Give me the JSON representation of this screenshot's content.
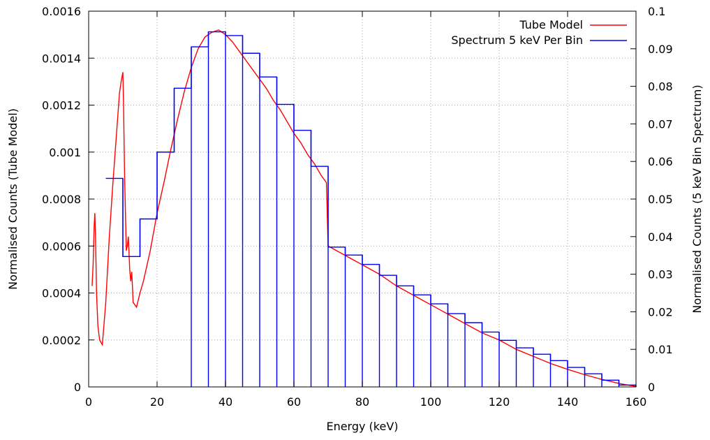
{
  "chart_data": {
    "type": "line",
    "title": "",
    "xlabel": "Energy (keV)",
    "ylabel": "Normalised Counts (Tube Model)",
    "y2label": "Normalised Counts (5 keV Bin Spectrum)",
    "xlim": [
      0,
      160
    ],
    "ylim": [
      0,
      0.0016
    ],
    "y2lim": [
      0,
      0.1
    ],
    "grid": true,
    "legend_position": "top-right",
    "x_ticks": [
      "0",
      "20",
      "40",
      "60",
      "80",
      "100",
      "120",
      "140",
      "160"
    ],
    "y_ticks": [
      "0",
      "0.0002",
      "0.0004",
      "0.0006",
      "0.0008",
      "0.001",
      "0.0012",
      "0.0014",
      "0.0016"
    ],
    "y2_ticks": [
      "0",
      "0.01",
      "0.02",
      "0.03",
      "0.04",
      "0.05",
      "0.06",
      "0.07",
      "0.08",
      "0.09",
      "0.1"
    ],
    "series": [
      {
        "name": "Tube Model",
        "type": "line",
        "axis": "left",
        "color": "#ff0000",
        "x": [
          1,
          1.3,
          1.6,
          1.8,
          2,
          2.3,
          2.7,
          3.2,
          4,
          5,
          6,
          7,
          8,
          9,
          9.5,
          10,
          10.2,
          10.5,
          11,
          11.3,
          11.6,
          12,
          12.3,
          12.6,
          13,
          14,
          15,
          16,
          18,
          20,
          22,
          24,
          26,
          28,
          30,
          32,
          34,
          36,
          38,
          40,
          42,
          44,
          46,
          48,
          50,
          52,
          54,
          56,
          58,
          60,
          62,
          64,
          66,
          68,
          69.5,
          70,
          75,
          80,
          85,
          90,
          95,
          100,
          105,
          110,
          115,
          120,
          125,
          130,
          135,
          140,
          145,
          150,
          155,
          158,
          160
        ],
        "y": [
          0.00043,
          0.00052,
          0.00068,
          0.00074,
          0.00065,
          0.0004,
          0.00026,
          0.0002,
          0.00018,
          0.00036,
          0.00063,
          0.00085,
          0.00105,
          0.00125,
          0.0013,
          0.00134,
          0.0012,
          0.0009,
          0.00058,
          0.0006,
          0.00064,
          0.0005,
          0.00045,
          0.00049,
          0.00036,
          0.00034,
          0.0004,
          0.00045,
          0.00058,
          0.00074,
          0.00087,
          0.00101,
          0.00114,
          0.00126,
          0.00136,
          0.00144,
          0.00149,
          0.00151,
          0.00152,
          0.0015,
          0.00147,
          0.00143,
          0.00139,
          0.00135,
          0.00131,
          0.00127,
          0.00122,
          0.00118,
          0.00113,
          0.00108,
          0.00104,
          0.00099,
          0.00095,
          0.0009,
          0.00087,
          0.0006,
          0.00056,
          0.00052,
          0.00048,
          0.00043,
          0.00039,
          0.00035,
          0.00031,
          0.00027,
          0.00023,
          0.0002,
          0.00016,
          0.00013,
          0.0001,
          7.5e-05,
          5.2e-05,
          3.2e-05,
          1.5e-05,
          7e-06,
          2.5e-06
        ]
      },
      {
        "name": "Spectrum 5 keV Per Bin",
        "type": "step",
        "axis": "right",
        "color": "#0000ff",
        "bin_width": 5,
        "x": [
          5,
          10,
          15,
          20,
          25,
          30,
          35,
          40,
          45,
          50,
          55,
          60,
          65,
          70,
          75,
          80,
          85,
          90,
          95,
          100,
          105,
          110,
          115,
          120,
          125,
          130,
          135,
          140,
          145,
          150,
          155
        ],
        "y": [
          0.0555,
          0.0347,
          0.0447,
          0.0625,
          0.0795,
          0.0905,
          0.0945,
          0.0935,
          0.0888,
          0.0825,
          0.0752,
          0.0683,
          0.0587,
          0.0372,
          0.0351,
          0.0326,
          0.0297,
          0.0269,
          0.0245,
          0.0221,
          0.0195,
          0.0171,
          0.0146,
          0.0124,
          0.0104,
          0.0087,
          0.007,
          0.0052,
          0.0035,
          0.0018,
          0.0005
        ]
      }
    ]
  }
}
